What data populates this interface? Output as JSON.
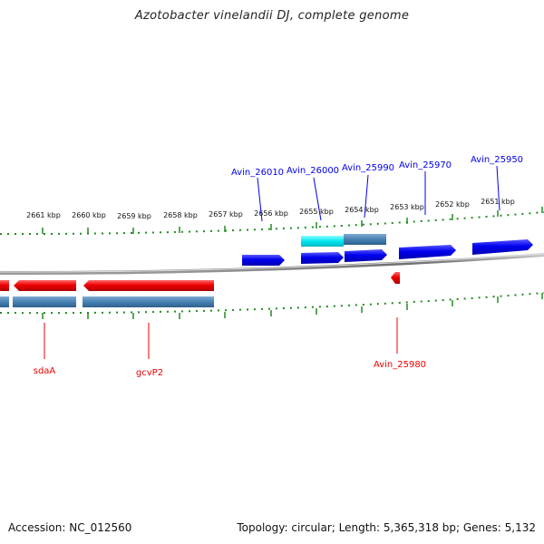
{
  "title": "Azotobacter vinelandii DJ, complete genome",
  "footer": {
    "accession": "Accession: NC_012560",
    "summary": "Topology: circular; Length: 5,365,318 bp; Genes: 5,132"
  },
  "scale": {
    "unit": "kbp",
    "labels": [
      "2661 kbp",
      "2660 kbp",
      "2659 kbp",
      "2658 kbp",
      "2657 kbp",
      "2656 kbp",
      "2655 kbp",
      "2654 kbp",
      "2653 kbp",
      "2652 kbp",
      "2651 kbp"
    ]
  },
  "genes_plus": [
    "Avin_26010",
    "Avin_26000",
    "Avin_25990",
    "Avin_25970",
    "Avin_25950"
  ],
  "genes_minus": [
    "sdaA",
    "gcvP2",
    "Avin_25980"
  ],
  "colors": {
    "plus_gene": "#0000ee",
    "minus_gene": "#ee0000",
    "highlight": "#00e5ee",
    "cds_steel": "#4682b4",
    "ticks": "#228b22",
    "backbone": "#7a7a7a"
  }
}
